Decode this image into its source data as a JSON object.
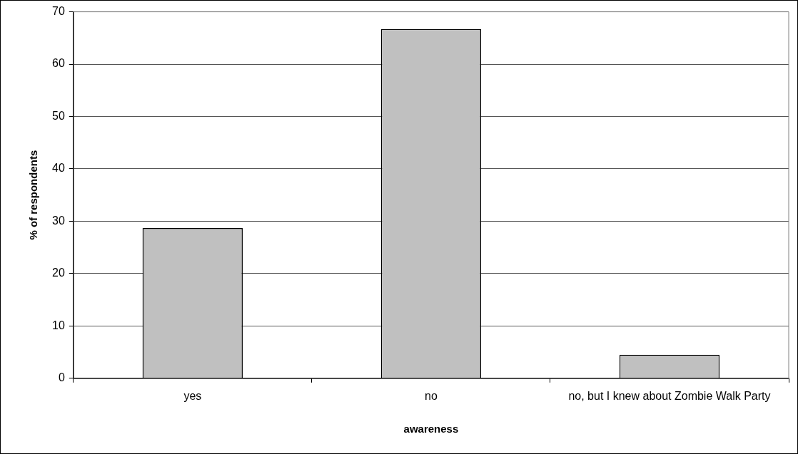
{
  "chart_data": {
    "type": "bar",
    "xlabel": "awareness",
    "ylabel": "% of respondents",
    "categories": [
      "yes",
      "no",
      "no, but I knew about Zombie Walk Party"
    ],
    "values": [
      28.7,
      66.7,
      4.5
    ],
    "color": "#c0c0c0",
    "ylim": [
      0,
      70
    ],
    "yticks": [
      0,
      10,
      20,
      30,
      40,
      50,
      60,
      70
    ],
    "grid": "y",
    "legend": false
  }
}
